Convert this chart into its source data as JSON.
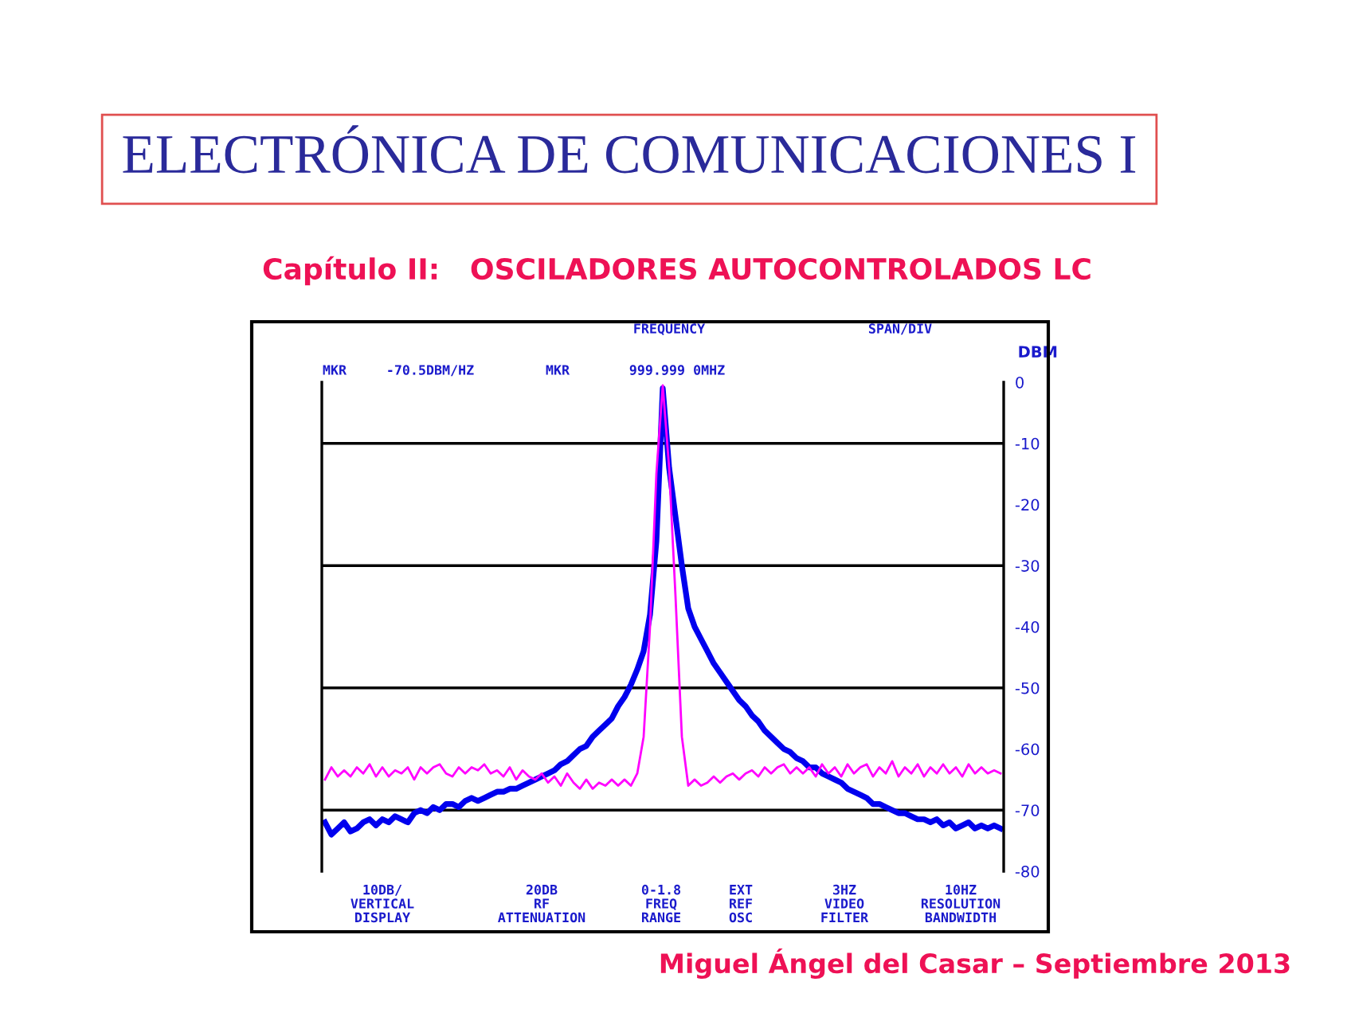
{
  "chart_data": {
    "type": "line",
    "title": "ELECTRÓNICA DE COMUNICACIONES I",
    "subtitle": "Capítulo II:   OSCILADORES AUTOCONTROLADOS LC",
    "ylabel": "DBM",
    "categories": [
      null,
      null,
      null,
      null,
      null,
      null,
      null,
      null,
      null,
      null,
      null,
      null,
      null,
      null,
      null,
      null,
      null,
      null,
      null,
      null,
      null,
      null,
      null,
      null,
      null,
      null,
      null,
      null,
      null,
      null,
      null,
      null,
      null,
      null,
      null,
      null,
      null,
      null,
      null,
      null,
      null,
      null,
      null,
      null,
      null,
      null,
      null,
      null,
      null,
      null,
      null,
      null,
      null,
      null,
      null,
      null,
      null,
      null,
      null,
      null,
      null,
      null,
      null,
      null,
      null,
      null,
      null,
      null,
      null,
      null,
      null,
      null,
      null,
      null,
      null,
      null,
      null,
      null,
      null,
      null,
      null,
      null,
      null,
      null,
      null,
      null,
      null,
      null,
      null,
      null,
      null,
      null,
      null,
      null,
      null,
      null,
      null,
      null,
      null,
      null,
      null,
      null,
      null,
      null,
      null,
      null,
      null
    ],
    "series": [
      {
        "color": "#0000ee",
        "values": [
          -72,
          -74,
          -73,
          -72,
          -73.5,
          -73,
          -72,
          -71.5,
          -72.5,
          -71.5,
          -72,
          -71,
          -71.5,
          -72,
          -70.5,
          -70,
          -70.5,
          -69.5,
          -70,
          -69,
          -69,
          -69.5,
          -68.5,
          -68,
          -68.5,
          -68,
          -67.5,
          -67,
          -67,
          -66.5,
          -66.5,
          -66,
          -65.5,
          -65,
          -64.5,
          -64,
          -63.5,
          -62.5,
          -62,
          -61,
          -60,
          -59.5,
          -58,
          -57,
          -56,
          -55,
          -53,
          -51.5,
          -49.5,
          -47,
          -44,
          -38,
          -26,
          -1,
          -14,
          -22,
          -30,
          -37,
          -40,
          -42,
          -44,
          -46,
          -47.5,
          -49,
          -50.5,
          -52,
          -53,
          -54.5,
          -55.5,
          -57,
          -58,
          -59,
          -60,
          -60.5,
          -61.5,
          -62,
          -63,
          -63,
          -64,
          -64.5,
          -65,
          -65.5,
          -66.5,
          -67,
          -67.5,
          -68,
          -69,
          -69,
          -69.5,
          -70,
          -70.5,
          -70.5,
          -71,
          -71.5,
          -71.5,
          -72,
          -71.5,
          -72.5,
          -72,
          -73,
          -72.5,
          -72,
          -73,
          -72.5,
          -73,
          -72.5,
          -73
        ]
      },
      {
        "color": "#ff00ff",
        "values": [
          -65,
          -63,
          -64.5,
          -63.5,
          -64.5,
          -63,
          -64,
          -62.5,
          -64.5,
          -63,
          -64.5,
          -63.5,
          -64,
          -63,
          -65,
          -63,
          -64,
          -63,
          -62.5,
          -64,
          -64.5,
          -63,
          -64,
          -63,
          -63.5,
          -62.5,
          -64,
          -63.5,
          -64.5,
          -63,
          -65,
          -63.5,
          -64.5,
          -65,
          -64,
          -65.5,
          -64.5,
          -66,
          -64,
          -65.5,
          -66.5,
          -65,
          -66.5,
          -65.5,
          -66,
          -65,
          -66,
          -65,
          -66,
          -64,
          -58,
          -40,
          -15,
          -0.5,
          -14,
          -35,
          -58,
          -66,
          -65,
          -66,
          -65.5,
          -64.5,
          -65.5,
          -64.5,
          -64,
          -65,
          -64,
          -63.5,
          -64.5,
          -63,
          -64,
          -63,
          -62.5,
          -64,
          -63,
          -64,
          -63,
          -64.5,
          -62.5,
          -64,
          -63,
          -64.5,
          -62.5,
          -64,
          -63,
          -62.5,
          -64.5,
          -63,
          -64,
          -62,
          -64.5,
          -63,
          -64,
          -62.5,
          -64.5,
          -63,
          -64,
          -62.5,
          -64,
          -63,
          -64.5,
          -62.5,
          -64,
          -63,
          -64,
          -63.5,
          -64
        ]
      }
    ],
    "ylim": [
      -80,
      0
    ],
    "yticks": [
      0,
      -10,
      -20,
      -30,
      -40,
      -50,
      -60,
      -70,
      -80
    ],
    "tick_labels": "y",
    "grid": false,
    "legend": false,
    "ref_lines": [
      {
        "axis": "y",
        "value": -10,
        "color": "#000000"
      },
      {
        "axis": "y",
        "value": -30,
        "color": "#000000"
      },
      {
        "axis": "y",
        "value": -50,
        "color": "#000000"
      },
      {
        "axis": "y",
        "value": -70,
        "color": "#000000"
      }
    ],
    "annotations": [
      "FREQUENCY",
      "SPAN/DIV",
      "MKR",
      "-70.5DBM/HZ",
      "MKR",
      "999.999 0MHZ",
      "10DB/\nVERTICAL\nDISPLAY",
      "20DB\nRF\nATTENUATION",
      "0-1.8\nFREQ\nRANGE",
      "EXT\nREF\nOSC",
      "3HZ\nVIDEO\nFILTER",
      "10HZ\nRESOLUTION\nBANDWIDTH",
      "Miguel Ángel del Casar – Septiembre 2013"
    ]
  }
}
